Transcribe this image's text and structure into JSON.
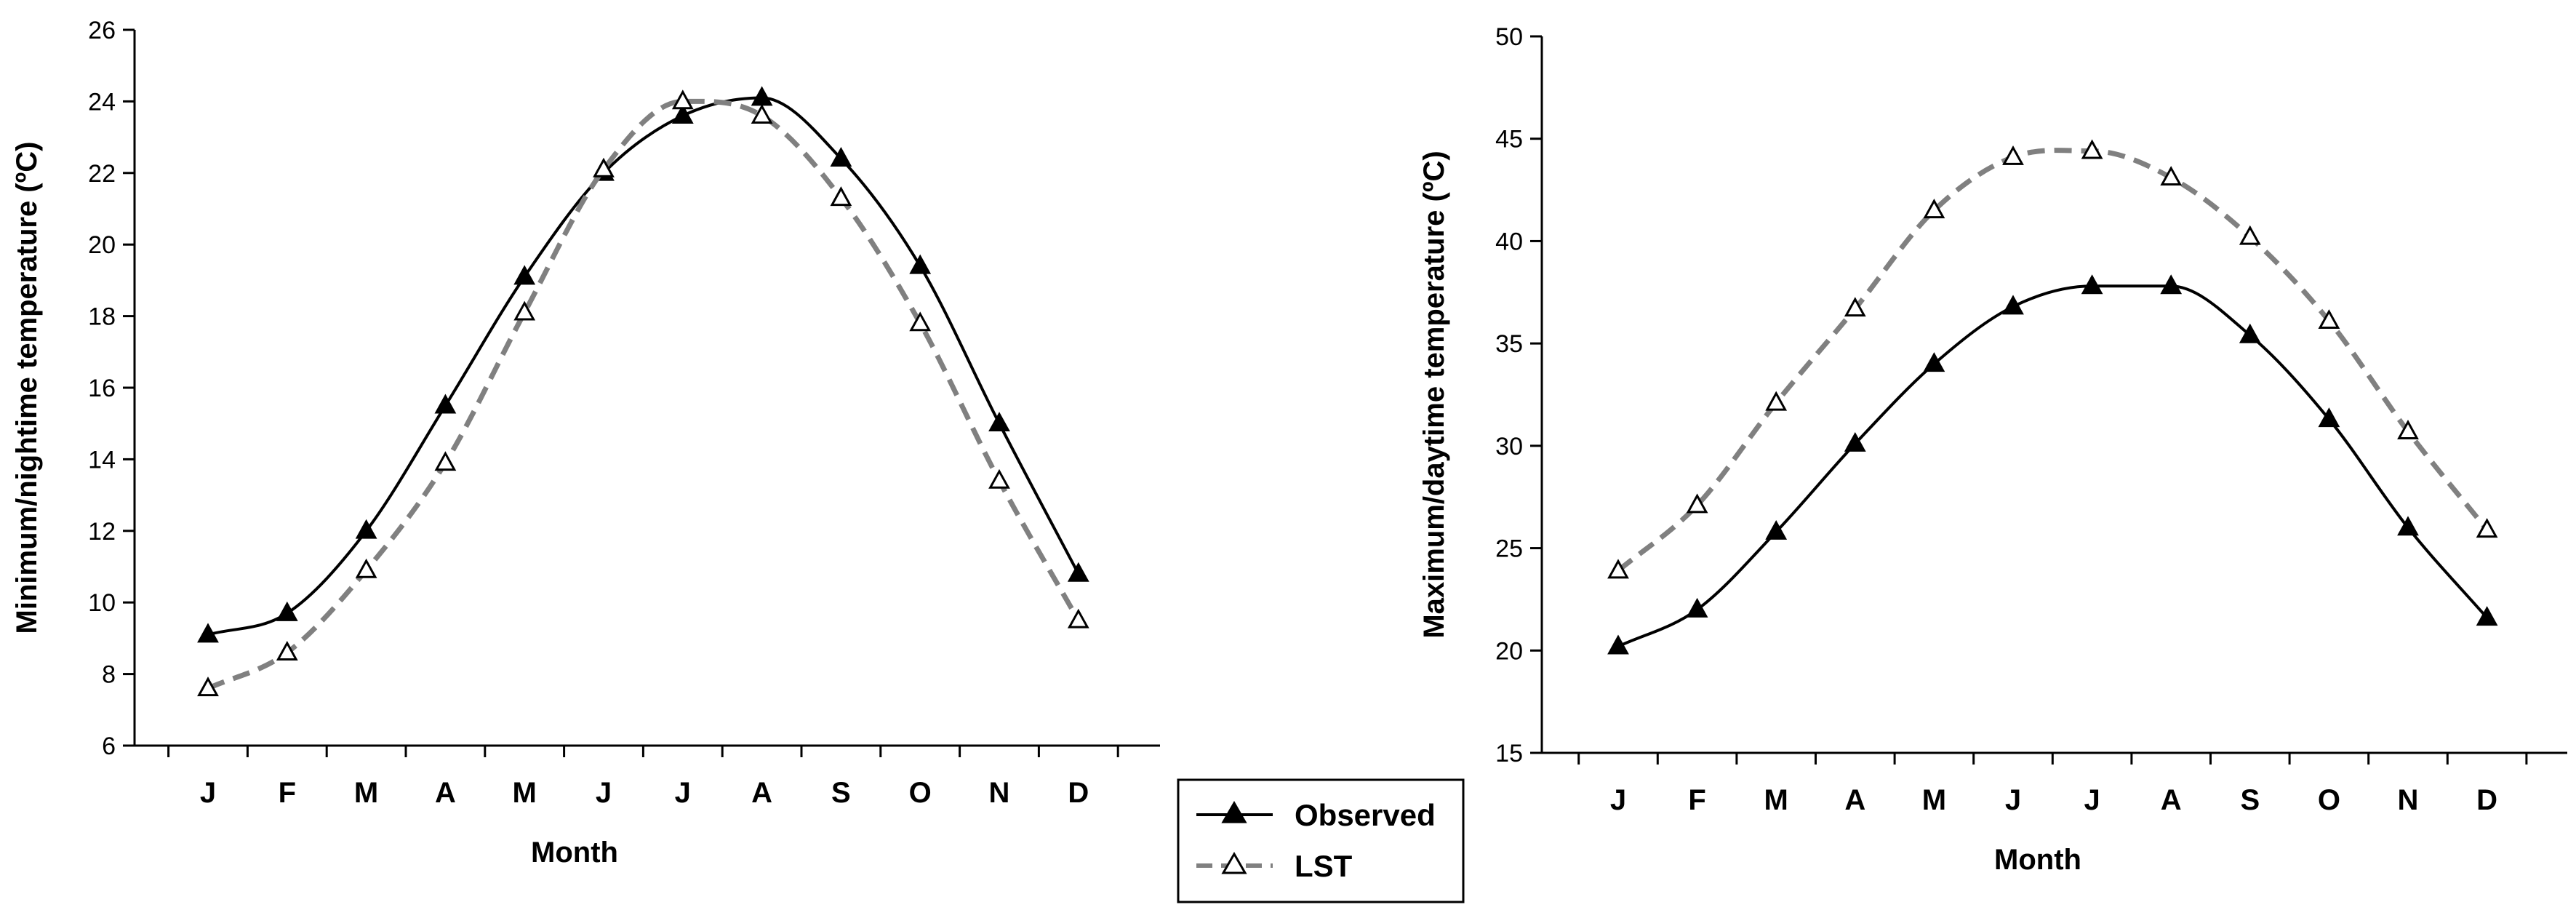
{
  "chart_data": [
    {
      "type": "line",
      "xlabel": "Month",
      "ylabel": "Minimum/nightime temperature (ºC)",
      "categories": [
        "J",
        "F",
        "M",
        "A",
        "M",
        "J",
        "J",
        "A",
        "S",
        "O",
        "N",
        "D"
      ],
      "ylim": [
        6,
        26
      ],
      "yticks": [
        6,
        8,
        10,
        12,
        14,
        16,
        18,
        20,
        22,
        24,
        26
      ],
      "series": [
        {
          "name": "Observed",
          "values": [
            9.1,
            9.7,
            12.0,
            15.5,
            19.1,
            22.0,
            23.6,
            24.1,
            22.4,
            19.4,
            15.0,
            10.8
          ]
        },
        {
          "name": "LST",
          "values": [
            7.6,
            8.6,
            10.9,
            13.9,
            18.1,
            22.1,
            24.0,
            23.6,
            21.3,
            17.8,
            13.4,
            9.5
          ]
        }
      ]
    },
    {
      "type": "line",
      "xlabel": "Month",
      "ylabel": "Maximum/daytime temperature (ºC)",
      "categories": [
        "J",
        "F",
        "M",
        "A",
        "M",
        "J",
        "J",
        "A",
        "S",
        "O",
        "N",
        "D"
      ],
      "ylim": [
        15,
        50
      ],
      "yticks": [
        15,
        20,
        25,
        30,
        35,
        40,
        45,
        50
      ],
      "series": [
        {
          "name": "Observed",
          "values": [
            20.2,
            22.0,
            25.8,
            30.1,
            34.0,
            36.8,
            37.8,
            37.8,
            35.4,
            31.3,
            26.0,
            21.6
          ]
        },
        {
          "name": "LST",
          "values": [
            23.9,
            27.1,
            32.1,
            36.7,
            41.5,
            44.1,
            44.4,
            43.1,
            40.2,
            36.1,
            30.7,
            25.9
          ]
        }
      ]
    }
  ],
  "legend": {
    "items": [
      {
        "label": "Observed",
        "style": "solid",
        "marker": "filled-triangle",
        "color": "#000000"
      },
      {
        "label": "LST",
        "style": "dashed",
        "marker": "open-triangle",
        "color": "#808080"
      }
    ]
  }
}
